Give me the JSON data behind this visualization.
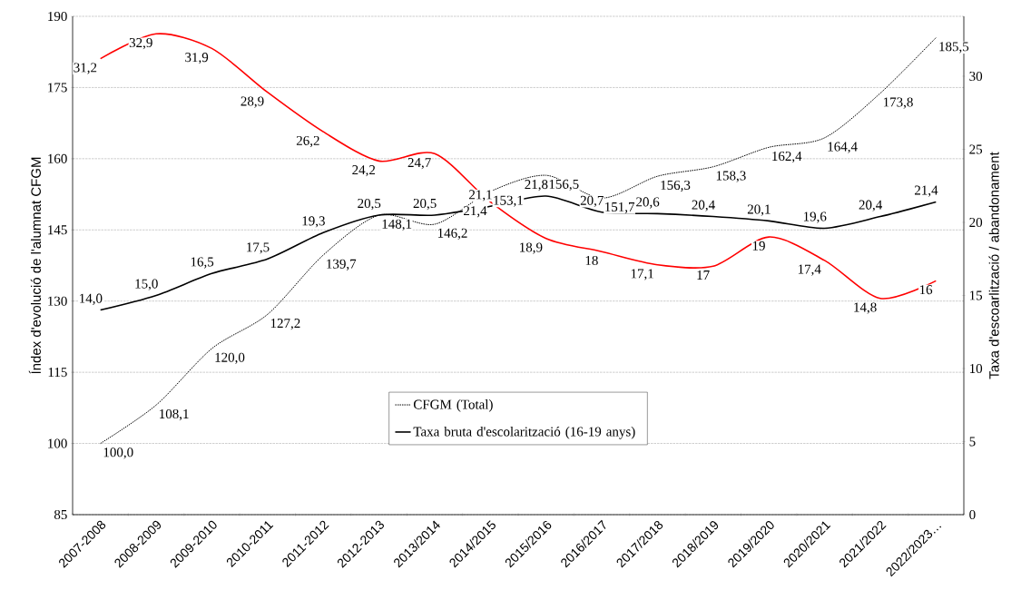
{
  "chart_data": {
    "type": "line",
    "categories": [
      "2007-2008",
      "2008-2009",
      "2009-2010",
      "2010-2011",
      "2011-2012",
      "2012-2013",
      "2013/2014",
      "2014/2015",
      "2015/2016",
      "2016/2017",
      "2017/2018",
      "2018/2019",
      "2019/2020",
      "2020/2021",
      "2021/2022",
      "2022/2023…"
    ],
    "ylabel": "Índex d'evolució de l'alumnat CFGM",
    "y2label": "Taxa d'escoarlització / abandonament",
    "ylim": [
      85,
      190
    ],
    "yticks": [
      85,
      100,
      115,
      130,
      145,
      160,
      175,
      190
    ],
    "y2lim": [
      0,
      34.1
    ],
    "y2ticks": [
      0,
      5,
      10,
      15,
      20,
      25,
      30
    ],
    "grid": "y",
    "legend": "bottom",
    "series": [
      {
        "name": "CFGM (Total)",
        "color": "#000000",
        "line_style": "dotted",
        "axis": "y",
        "values": [
          100.0,
          108.1,
          120.0,
          127.2,
          139.7,
          148.1,
          146.2,
          153.1,
          156.5,
          151.7,
          156.3,
          158.3,
          162.4,
          164.4,
          173.8,
          185.5
        ],
        "value_labels": [
          "100,0",
          "108,1",
          "120,0",
          "127,2",
          "139,7",
          "148,1",
          "146,2",
          "153,1",
          "156,5",
          "151,7",
          "156,3",
          "158,3",
          "162,4",
          "164,4",
          "173,8",
          "185,5"
        ]
      },
      {
        "name": "Taxa bruta d'escolarització (16-19 anys)",
        "color": "#000000",
        "line_style": "solid",
        "axis": "y2",
        "values": [
          14.0,
          15.0,
          16.5,
          17.5,
          19.3,
          20.5,
          20.5,
          21.1,
          21.8,
          20.7,
          20.6,
          20.4,
          20.1,
          19.6,
          20.4,
          21.4
        ],
        "value_labels": [
          "14,0",
          "15,0",
          "16,5",
          "17,5",
          "19,3",
          "20,5",
          "20,5",
          "21,1",
          "21,8",
          "20,7",
          "20,6",
          "20,4",
          "20,1",
          "19,6",
          "20,4",
          "21,4"
        ]
      },
      {
        "color": "#ff0000",
        "line_style": "solid",
        "axis": "y2",
        "values": [
          31.2,
          32.9,
          31.9,
          28.9,
          26.2,
          24.2,
          24.7,
          21.4,
          18.9,
          18,
          17.1,
          17,
          19,
          17.4,
          14.8,
          16
        ],
        "value_labels": [
          "31,2",
          "32,9",
          "31,9",
          "28,9",
          "26,2",
          "24,2",
          "24,7",
          "21,4",
          "18,9",
          "18",
          "17,1",
          "17",
          "19",
          "17,4",
          "14,8",
          "16"
        ]
      }
    ]
  }
}
